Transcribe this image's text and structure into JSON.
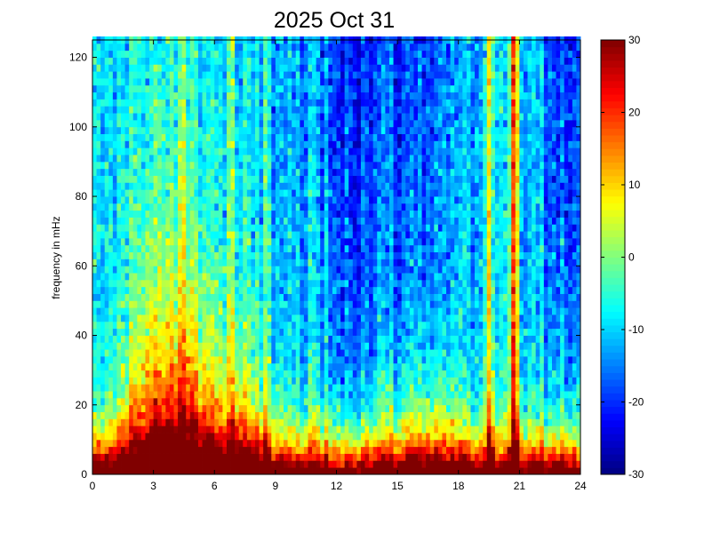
{
  "chart_data": {
    "type": "heatmap",
    "title": "2025 Oct 31",
    "xlabel": "",
    "ylabel": "frequency in mHz",
    "xlim": [
      0,
      24
    ],
    "ylim": [
      0,
      125
    ],
    "x_ticks": [
      "0",
      "3",
      "6",
      "9",
      "12",
      "15",
      "18",
      "21",
      "24"
    ],
    "y_ticks": [
      "0",
      "20",
      "40",
      "60",
      "80",
      "100",
      "120"
    ],
    "colorbar": {
      "colormap": "jet",
      "range": [
        -30,
        30
      ],
      "ticks": [
        "-30",
        "-20",
        "-10",
        "0",
        "10",
        "20",
        "30"
      ]
    },
    "grid": false,
    "grid_resolution": {
      "x_step_hours": 0.2,
      "y_step_mhz": 2
    },
    "features": {
      "baseline_db": -11,
      "low_freq_power": {
        "scale_mhz": 10,
        "strength_db": 52
      },
      "storm_intervals": [
        {
          "center_h": 3.0,
          "width_h": 1.6,
          "height_mhz": 55,
          "strength_db": 30
        },
        {
          "center_h": 5.0,
          "width_h": 1.3,
          "height_mhz": 60,
          "strength_db": 26
        },
        {
          "center_h": 7.2,
          "width_h": 1.5,
          "height_mhz": 40,
          "strength_db": 18
        },
        {
          "center_h": 16.5,
          "width_h": 1.6,
          "height_mhz": 30,
          "strength_db": 12
        }
      ],
      "quiet_intervals": [
        {
          "center_h": 14.0,
          "width_h": 3.6,
          "height_mhz": 90,
          "strength_db": -12
        },
        {
          "center_h": 23.0,
          "width_h": 0.7,
          "height_mhz": 70,
          "strength_db": -14
        }
      ],
      "vertical_streaks": [
        {
          "x_h": 2.0,
          "width_h": 0.15,
          "strength_db": 10
        },
        {
          "x_h": 4.5,
          "width_h": 0.15,
          "strength_db": 8
        },
        {
          "x_h": 6.8,
          "width_h": 0.15,
          "strength_db": 10
        },
        {
          "x_h": 8.6,
          "width_h": 0.15,
          "strength_db": 10
        },
        {
          "x_h": 11.0,
          "width_h": 0.12,
          "strength_db": 6
        },
        {
          "x_h": 14.2,
          "width_h": 0.12,
          "strength_db": 8
        },
        {
          "x_h": 19.5,
          "width_h": 0.18,
          "strength_db": 18
        },
        {
          "x_h": 20.75,
          "width_h": 0.18,
          "strength_db": 32
        }
      ]
    }
  }
}
